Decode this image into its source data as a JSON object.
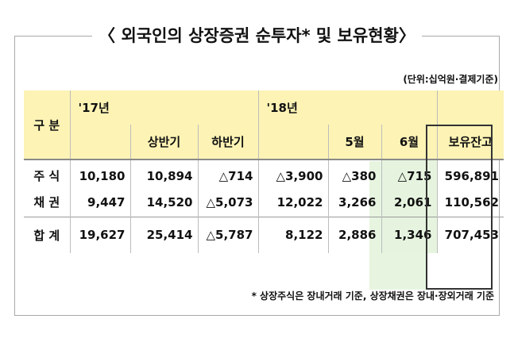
{
  "title": "〈 외국인의 상장증권 순투자* 및 보유현황〉",
  "unit_note": "(단위:십억원·결제기준)",
  "headers": {
    "category": "구 분",
    "y17": "'17년",
    "h1": "상반기",
    "h2": "하반기",
    "y18": "'18년",
    "may": "5월",
    "june": "6월",
    "holding": "보유잔고"
  },
  "rows": [
    {
      "label": "주 식",
      "y17": "10,180",
      "h1": "10,894",
      "h2": "△714",
      "y18": "△3,900",
      "may": "△380",
      "june": "△715",
      "holding": "596,891"
    },
    {
      "label": "채 권",
      "y17": "9,447",
      "h1": "14,520",
      "h2": "△5,073",
      "y18": "12,022",
      "may": "3,266",
      "june": "2,061",
      "holding": "110,562"
    },
    {
      "label": "합 계",
      "y17": "19,627",
      "h1": "25,414",
      "h2": "△5,787",
      "y18": "8,122",
      "may": "2,886",
      "june": "1,346",
      "holding": "707,453"
    }
  ],
  "footnote": "* 상장주식은 장내거래 기준, 상장채권은 장내·장외거래 기준"
}
